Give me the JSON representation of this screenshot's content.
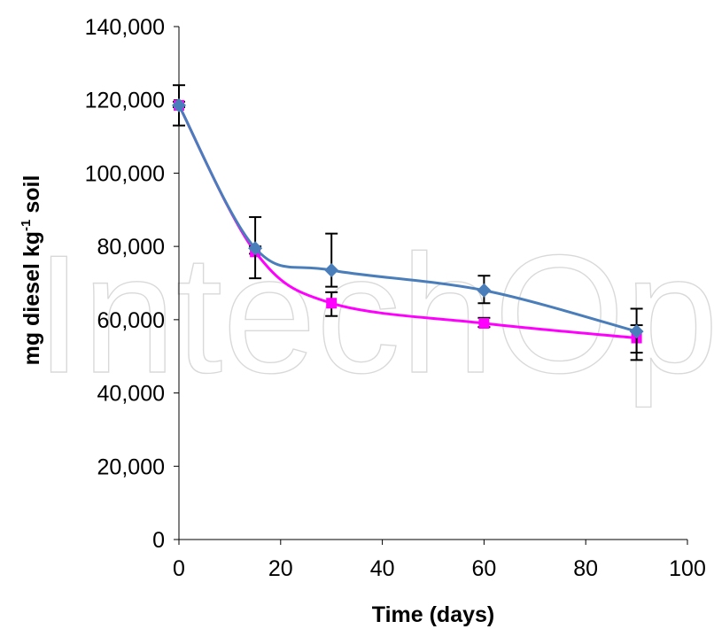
{
  "chart_data": {
    "type": "line",
    "x": [
      0,
      15,
      30,
      60,
      90
    ],
    "series": [
      {
        "values": [
          118500,
          78500,
          64500,
          59000,
          55000
        ],
        "err_low": [
          118000,
          78000,
          61000,
          58000,
          49000
        ],
        "err_high": [
          119500,
          80000,
          67500,
          60500,
          58500
        ],
        "color": "#ff00ff",
        "marker": "square"
      },
      {
        "values": [
          118500,
          79500,
          73500,
          68000,
          56800
        ],
        "err_low": [
          113000,
          71300,
          69000,
          64500,
          51000
        ],
        "err_high": [
          124000,
          88000,
          83500,
          72000,
          63000
        ],
        "color": "#4a7ebb",
        "marker": "diamond"
      }
    ],
    "xlabel": "Time (days)",
    "ylabel_main": "mg diesel kg",
    "ylabel_sup": "-1",
    "ylabel_tail": " soil",
    "xlim": [
      0,
      100
    ],
    "ylim": [
      0,
      140000
    ],
    "xticks": [
      "0",
      "20",
      "40",
      "60",
      "80",
      "100"
    ],
    "yticks": [
      "0",
      "20,000",
      "40,000",
      "60,000",
      "80,000",
      "100,000",
      "120,000",
      "140,000"
    ],
    "grid": false,
    "watermark": "IntechOpen"
  }
}
